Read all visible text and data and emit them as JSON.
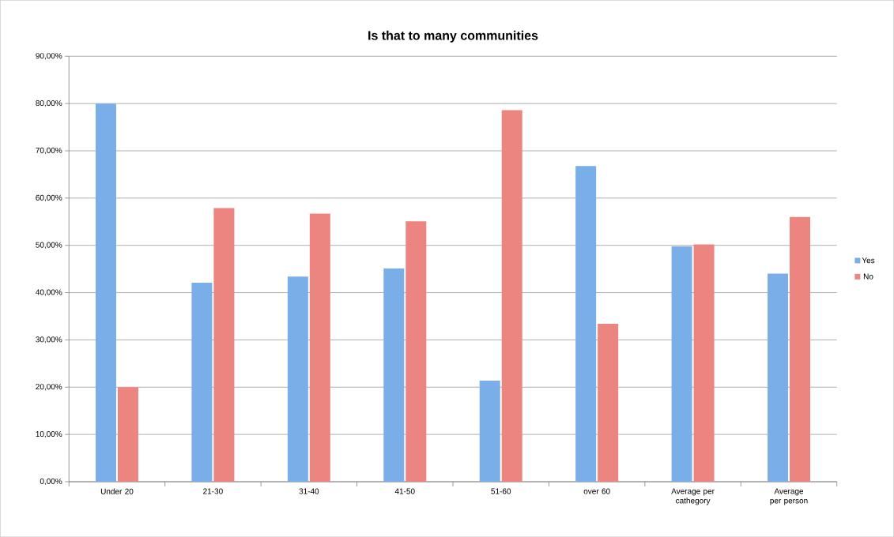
{
  "chart_data": {
    "type": "bar",
    "title": "Is that to many communities",
    "categories": [
      "Under 20",
      "21-30",
      "31-40",
      "41-50",
      "51-60",
      "over 60",
      "Average per cathegory",
      "Average per person"
    ],
    "series": [
      {
        "name": "Yes",
        "color": "#7aaee8",
        "values": [
          80.0,
          42.1,
          43.4,
          45.1,
          21.4,
          66.8,
          49.8,
          44.0
        ]
      },
      {
        "name": "No",
        "color": "#ec8580",
        "values": [
          20.0,
          57.9,
          56.7,
          55.1,
          78.6,
          33.4,
          50.2,
          56.0
        ]
      }
    ],
    "ylim": [
      0,
      90
    ],
    "yticks": [
      {
        "value": 0,
        "label": "0,00%"
      },
      {
        "value": 10,
        "label": "10,00%"
      },
      {
        "value": 20,
        "label": "20,00%"
      },
      {
        "value": 30,
        "label": "30,00%"
      },
      {
        "value": 40,
        "label": "40,00%"
      },
      {
        "value": 50,
        "label": "50,00%"
      },
      {
        "value": 60,
        "label": "60,00%"
      },
      {
        "value": 70,
        "label": "70,00%"
      },
      {
        "value": 80,
        "label": "80,00%"
      },
      {
        "value": 90,
        "label": "90,00%"
      }
    ],
    "grid": "y",
    "legend": "right"
  }
}
